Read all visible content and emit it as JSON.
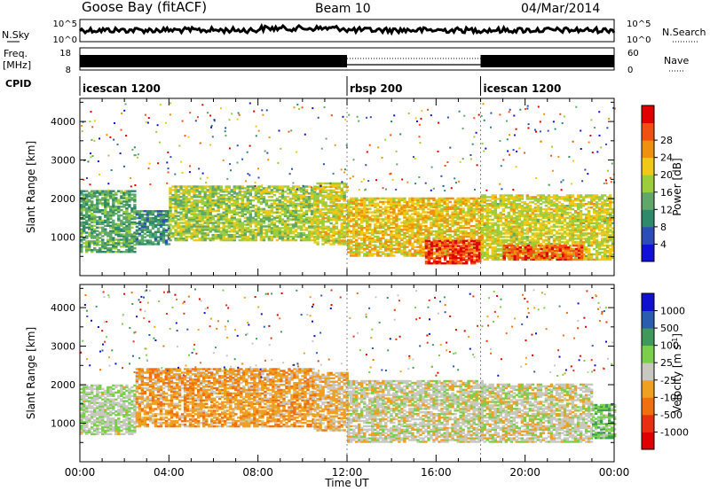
{
  "header": {
    "station": "Goose Bay (fitACF)",
    "beam": "Beam 10",
    "date": "04/Mar/2014"
  },
  "strip_noise": {
    "left_label": "N.Sky",
    "right_label": "N.Search",
    "left_ticks": [
      "10^5",
      "10^0"
    ],
    "right_ticks": [
      "10^5",
      "10^0"
    ]
  },
  "strip_freq": {
    "left_label_1": "Freq.",
    "left_label_2": "[MHz]",
    "right_label": "Nave",
    "left_ticks": [
      "18",
      "8"
    ],
    "right_ticks": [
      "60",
      "0"
    ]
  },
  "strip_cpid": {
    "label": "CPID",
    "segments": [
      {
        "name": "icescan 1200",
        "start_hour": 0,
        "end_hour": 12
      },
      {
        "name": "rbsp 200",
        "start_hour": 12,
        "end_hour": 18
      },
      {
        "name": "icescan 1200",
        "start_hour": 18,
        "end_hour": 24
      }
    ]
  },
  "colors": {
    "power": [
      "#1010d8",
      "#2c4cb8",
      "#2e8a6a",
      "#5fa86a",
      "#9ccd3a",
      "#f0c818",
      "#f09010",
      "#f05010",
      "#e00000"
    ],
    "velocity": [
      "#1010d0",
      "#2a5cb0",
      "#3f9a5a",
      "#7ad04a",
      "#c8c8c0",
      "#f0a020",
      "#f07010",
      "#e83010",
      "#e00000"
    ]
  },
  "chart_data": [
    {
      "type": "heatmap",
      "name": "power",
      "ylabel": "Slant Range [km]",
      "xlim": [
        0,
        24
      ],
      "ylim": [
        0,
        4600
      ],
      "yticks": [
        1000,
        2000,
        3000,
        4000
      ],
      "colorbar_label": "Power [dB]",
      "colorbar_ticks": [
        "4",
        "8",
        "12",
        "16",
        "20",
        "24",
        "28"
      ],
      "colorbar_range": [
        0,
        32
      ],
      "echo_regions": [
        {
          "t": [
            0.0,
            2.5
          ],
          "range_km": [
            600,
            2200
          ],
          "level_dB": 12
        },
        {
          "t": [
            2.5,
            4.0
          ],
          "range_km": [
            800,
            1700
          ],
          "level_dB": 10
        },
        {
          "t": [
            4.0,
            10.5
          ],
          "range_km": [
            900,
            2300
          ],
          "level_dB": 16
        },
        {
          "t": [
            10.5,
            12.0
          ],
          "range_km": [
            800,
            2400
          ],
          "level_dB": 18
        },
        {
          "t": [
            12.0,
            18.0
          ],
          "range_km": [
            500,
            2000
          ],
          "level_dB": 20
        },
        {
          "t": [
            15.5,
            18.0
          ],
          "range_km": [
            300,
            900
          ],
          "level_dB": 28
        },
        {
          "t": [
            18.0,
            24.0
          ],
          "range_km": [
            400,
            2100
          ],
          "level_dB": 18
        },
        {
          "t": [
            19.0,
            22.5
          ],
          "range_km": [
            400,
            800
          ],
          "level_dB": 26
        }
      ]
    },
    {
      "type": "heatmap",
      "name": "velocity",
      "ylabel": "Slant Range [km]",
      "xlabel": "Time UT",
      "xlim": [
        0,
        24
      ],
      "ylim": [
        0,
        4600
      ],
      "yticks": [
        1000,
        2000,
        3000,
        4000
      ],
      "xticks": [
        "00:00",
        "04:00",
        "08:00",
        "12:00",
        "16:00",
        "20:00",
        "00:00"
      ],
      "colorbar_label": "Velocity [m s^-1]",
      "colorbar_ticks": [
        "-1000",
        "-500",
        "-100",
        "-25",
        "25",
        "100",
        "500",
        "1000"
      ],
      "colorbar_range": [
        -1250,
        1250
      ],
      "echo_regions": [
        {
          "t": [
            0.0,
            2.5
          ],
          "range_km": [
            700,
            2000
          ],
          "velocity": 100
        },
        {
          "t": [
            2.5,
            10.5
          ],
          "range_km": [
            900,
            2400
          ],
          "velocity": -300
        },
        {
          "t": [
            10.5,
            12.0
          ],
          "range_km": [
            800,
            2300
          ],
          "velocity": -200
        },
        {
          "t": [
            12.0,
            18.0
          ],
          "range_km": [
            500,
            2100
          ],
          "velocity": 0
        },
        {
          "t": [
            18.0,
            23.0
          ],
          "range_km": [
            500,
            2000
          ],
          "velocity": 0
        },
        {
          "t": [
            23.0,
            24.0
          ],
          "range_km": [
            600,
            1500
          ],
          "velocity": 300
        }
      ]
    }
  ]
}
